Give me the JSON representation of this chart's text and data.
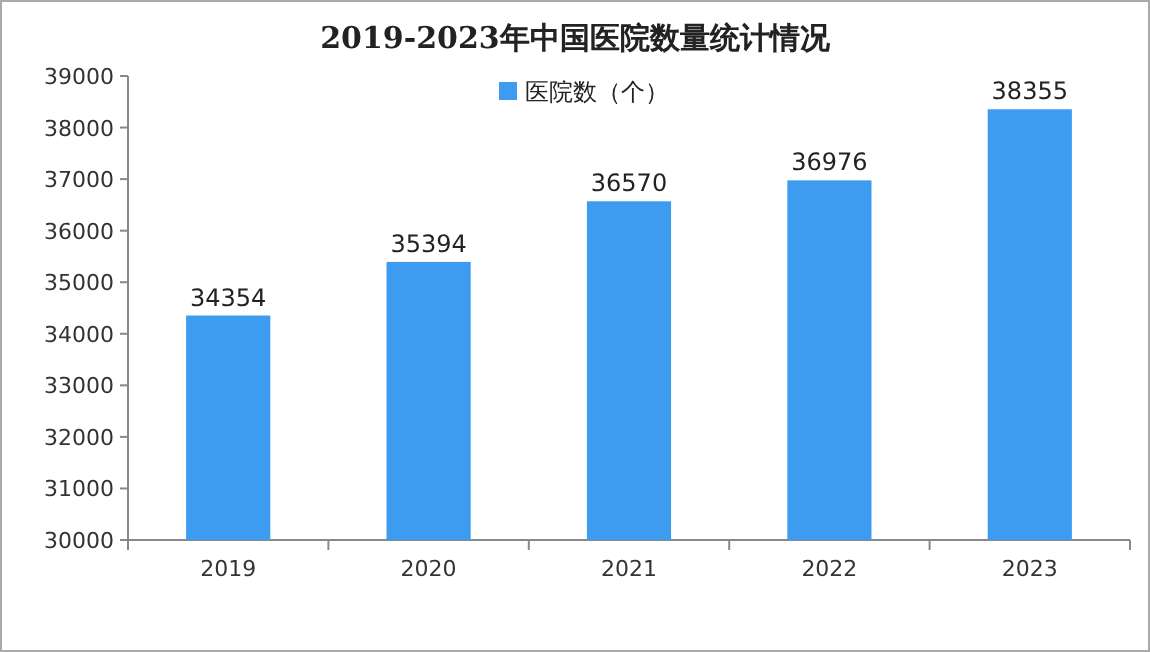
{
  "chart_data": {
    "type": "bar",
    "title": "2019-2023年中国医院数量统计情况",
    "categories": [
      "2019",
      "2020",
      "2021",
      "2022",
      "2023"
    ],
    "series": [
      {
        "name": "医院数（个）",
        "color": "#3d9cf0",
        "values": [
          34354,
          35394,
          36570,
          36976,
          38355
        ]
      }
    ],
    "ylim": [
      30000,
      39000
    ],
    "yticks": [
      30000,
      31000,
      32000,
      33000,
      34000,
      35000,
      36000,
      37000,
      38000,
      39000
    ],
    "data_labels": true,
    "legend": "top",
    "grid": false
  }
}
